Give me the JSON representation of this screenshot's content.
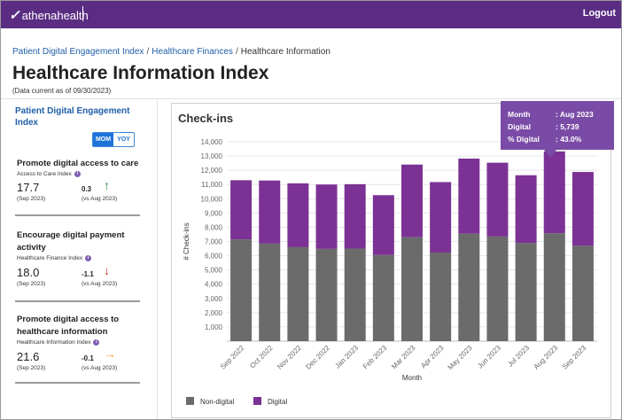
{
  "app": {
    "brand": "athenahealth",
    "logout_label": "Logout"
  },
  "breadcrumb": {
    "items": [
      {
        "label": "Patient Digital Engagement Index"
      },
      {
        "label": "Healthcare Finances"
      }
    ],
    "current": "Healthcare Information",
    "separator": "/"
  },
  "page": {
    "title": "Healthcare Information Index",
    "data_current": "(Data current as of 09/30/2023)"
  },
  "sidebar": {
    "title": "Patient Digital Engagement Index",
    "toggle": {
      "mom_label": "MOM",
      "yoy_label": "YOY",
      "selected": "MOM"
    },
    "metrics": [
      {
        "title": "Promote digital access to care",
        "index_name": "Access to Care Index",
        "value": "17.7",
        "period": "(Sep 2023)",
        "change": "0.3",
        "vs": "(vs Aug 2023)",
        "trend": "up",
        "trend_color": "#2e8b3e"
      },
      {
        "title": "Encourage digital payment activity",
        "index_name": "Healthcare Finance Index",
        "value": "18.0",
        "period": "(Sep 2023)",
        "change": "-1.1",
        "vs": "(vs Aug 2023)",
        "trend": "down",
        "trend_color": "#d0312d"
      },
      {
        "title": "Promote digital access to healthcare information",
        "index_name": "Healthcare Information Index",
        "value": "21.6",
        "period": "(Sep 2023)",
        "change": "-0.1",
        "vs": "(vs Aug 2023)",
        "trend": "right",
        "trend_color": "#f0a030"
      }
    ]
  },
  "tooltip": {
    "month_label": "Month",
    "month_value": ": Aug 2023",
    "digital_label": "Digital",
    "digital_value": ": 5,739",
    "pct_label": "% Digital",
    "pct_value": ": 43.0%"
  },
  "chart_data": {
    "type": "bar",
    "stacked": true,
    "title": "Check-ins",
    "xlabel": "Month",
    "ylabel": "# Check-ins",
    "ylim": [
      0,
      14000
    ],
    "yticks": [
      1000,
      2000,
      3000,
      4000,
      5000,
      6000,
      7000,
      8000,
      9000,
      10000,
      11000,
      12000,
      13000,
      14000
    ],
    "yticklabels": [
      "1,000",
      "2,000",
      "3,000",
      "4,000",
      "5,000",
      "6,000",
      "7,000",
      "8,000",
      "9,000",
      "10,000",
      "11,000",
      "12,000",
      "13,000",
      "14,000"
    ],
    "grid": true,
    "legend": "bottom-left",
    "highlighted": "Aug 2023",
    "categories": [
      "Sep 2022",
      "Oct 2022",
      "Nov 2022",
      "Dec 2022",
      "Jan 2023",
      "Feb 2023",
      "Mar 2023",
      "Apr 2023",
      "May 2023",
      "Jun 2023",
      "Jul 2023",
      "Aug 2023",
      "Sep 2023"
    ],
    "series": [
      {
        "name": "Non-digital",
        "color": "#6b6b6b",
        "values": [
          7150,
          6850,
          6600,
          6480,
          6500,
          6050,
          7300,
          6220,
          7550,
          7350,
          6900,
          7580,
          6700
        ]
      },
      {
        "name": "Digital",
        "color": "#7b3294",
        "values": [
          4150,
          4430,
          4480,
          4520,
          4520,
          4200,
          5100,
          4950,
          5270,
          5180,
          4750,
          5739,
          5180
        ]
      }
    ]
  }
}
